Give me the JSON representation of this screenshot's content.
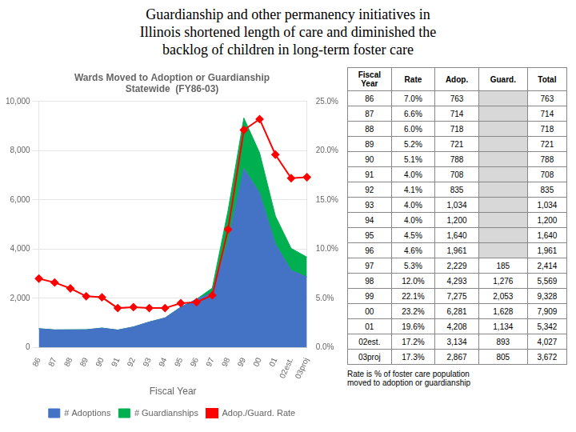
{
  "chart_data": {
    "type": "line",
    "title": [
      "Guardianship and other permanency initiatives in",
      "Illinois shortened length of care and diminished the",
      "backlog of children in long-term foster care"
    ],
    "subtitle": [
      "Wards Moved to Adoption or Guardianship",
      "Statewide  (FY86-03)"
    ],
    "x_label": "Fiscal Year",
    "categories": [
      "86",
      "87",
      "88",
      "89",
      "90",
      "91",
      "92",
      "93",
      "94",
      "95",
      "96",
      "97",
      "98",
      "99",
      "00",
      "01",
      "02est.",
      "03proj"
    ],
    "series": [
      {
        "name": "# Adoptions",
        "type": "area",
        "color": "#4472C4",
        "values": [
          763,
          714,
          718,
          721,
          788,
          708,
          835,
          1034,
          1200,
          1640,
          1961,
          2229,
          4293,
          7275,
          6281,
          4208,
          3134,
          2867
        ]
      },
      {
        "name": "# Guardianships",
        "type": "area",
        "color": "#00B050",
        "values": [
          0,
          0,
          0,
          0,
          0,
          0,
          0,
          0,
          0,
          0,
          0,
          185,
          1276,
          2053,
          1628,
          1134,
          893,
          805
        ]
      },
      {
        "name": "Adop./Guard. Rate",
        "type": "line",
        "color": "#FF0000",
        "marker": "diamond",
        "axis": "y2",
        "values": [
          7.0,
          6.6,
          6.0,
          5.2,
          5.1,
          4.0,
          4.1,
          4.0,
          4.0,
          4.5,
          4.6,
          5.3,
          12.0,
          22.1,
          23.2,
          19.6,
          17.2,
          17.3
        ]
      }
    ],
    "stacked": true,
    "ylim": [
      0,
      10000
    ],
    "yticks": [
      0,
      {
        "value": 2000,
        "label": "2,000"
      },
      {
        "value": 4000,
        "label": "4,000"
      },
      {
        "value": 6000,
        "label": "6,000"
      },
      {
        "value": 8000,
        "label": "8,000"
      },
      {
        "value": 10000,
        "label": "10,000"
      }
    ],
    "y2lim": [
      0,
      25
    ],
    "y2ticks": [
      {
        "value": 0,
        "label": "0.0%"
      },
      {
        "value": 5,
        "label": "5.0%"
      },
      {
        "value": 10,
        "label": "10.0%"
      },
      {
        "value": 15,
        "label": "15.0%"
      },
      {
        "value": 20,
        "label": "20.0%"
      },
      {
        "value": 25,
        "label": "25.0%"
      }
    ],
    "grid": true,
    "legend": "bottom",
    "table": {
      "headers": [
        "Fiscal\nYear",
        "Rate",
        "Adop.",
        "Guard.",
        "Total"
      ],
      "rows": [
        [
          "86",
          "7.0%",
          "763",
          null,
          "763"
        ],
        [
          "87",
          "6.6%",
          "714",
          null,
          "714"
        ],
        [
          "88",
          "6.0%",
          "718",
          null,
          "718"
        ],
        [
          "89",
          "5.2%",
          "721",
          null,
          "721"
        ],
        [
          "90",
          "5.1%",
          "788",
          null,
          "788"
        ],
        [
          "91",
          "4.0%",
          "708",
          null,
          "708"
        ],
        [
          "92",
          "4.1%",
          "835",
          null,
          "835"
        ],
        [
          "93",
          "4.0%",
          "1,034",
          null,
          "1,034"
        ],
        [
          "94",
          "4.0%",
          "1,200",
          null,
          "1,200"
        ],
        [
          "95",
          "4.5%",
          "1,640",
          null,
          "1,640"
        ],
        [
          "96",
          "4.6%",
          "1,961",
          null,
          "1,961"
        ],
        [
          "97",
          "5.3%",
          "2,229",
          "185",
          "2,414"
        ],
        [
          "98",
          "12.0%",
          "4,293",
          "1,276",
          "5,569"
        ],
        [
          "99",
          "22.1%",
          "7,275",
          "2,053",
          "9,328"
        ],
        [
          "00",
          "23.2%",
          "6,281",
          "1,628",
          "7,909"
        ],
        [
          "01",
          "19.6%",
          "4,208",
          "1,134",
          "5,342"
        ],
        [
          "02est.",
          "17.2%",
          "3,134",
          "893",
          "4,027"
        ],
        [
          "03proj",
          "17.3%",
          "2,867",
          "805",
          "3,672"
        ]
      ]
    },
    "footnote": "Rate is % of foster care population\nmoved to adoption or guardianship"
  }
}
